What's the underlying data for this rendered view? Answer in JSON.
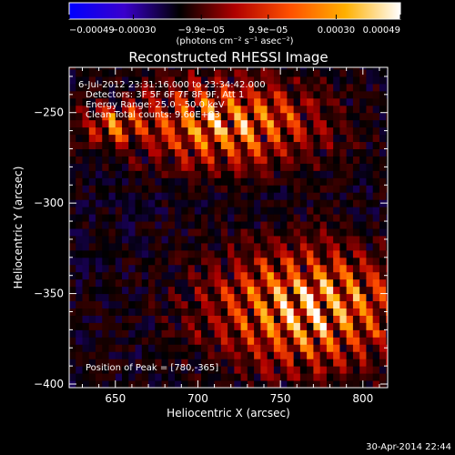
{
  "chart_data": {
    "type": "heatmap",
    "title": "Reconstructed RHESSI Image",
    "xlabel": "Heliocentric X (arcsec)",
    "ylabel": "Heliocentric Y (arcsec)",
    "xlim": [
      622,
      815
    ],
    "ylim": [
      -402,
      -225
    ],
    "x_ticks": [
      650,
      700,
      750,
      800
    ],
    "x_tick_labels": [
      "650",
      "700",
      "750",
      "800"
    ],
    "y_ticks": [
      -400,
      -350,
      -300,
      -250
    ],
    "y_tick_labels": [
      "−400",
      "−350",
      "−300",
      "−250"
    ],
    "colorbar": {
      "min": -0.00049,
      "max": 0.00049,
      "ticks": [
        -0.00049,
        -0.0003,
        -9.9e-05,
        9.9e-05,
        0.0003,
        0.00049
      ],
      "tick_labels": [
        "−0.00049",
        "−0.00030",
        "−9.9e−05",
        "9.9e−05",
        "0.00030",
        "0.00049"
      ],
      "units_label": "(photons cm⁻² s⁻¹ asec⁻²)",
      "colors": [
        "#0000ff",
        "#3a00cc",
        "#000000",
        "#b00000",
        "#ff5000",
        "#ffb000",
        "#ffffff"
      ]
    },
    "annotations": {
      "line1": "6-Jul-2012 23:31:16.000 to 23:34:42.000",
      "line2": "Detectors: 3F 5F 6F 7F 8F 9F, Att 1",
      "line3": "Energy Range: 25.0 - 50.0 keV",
      "line4": "Clean     Total counts: 9.60E+03",
      "peak": "Position of Peak = [780,-365]"
    },
    "peak_position": [
      780,
      -365
    ],
    "footer_timestamp": "30-Apr-2014 22:44"
  }
}
